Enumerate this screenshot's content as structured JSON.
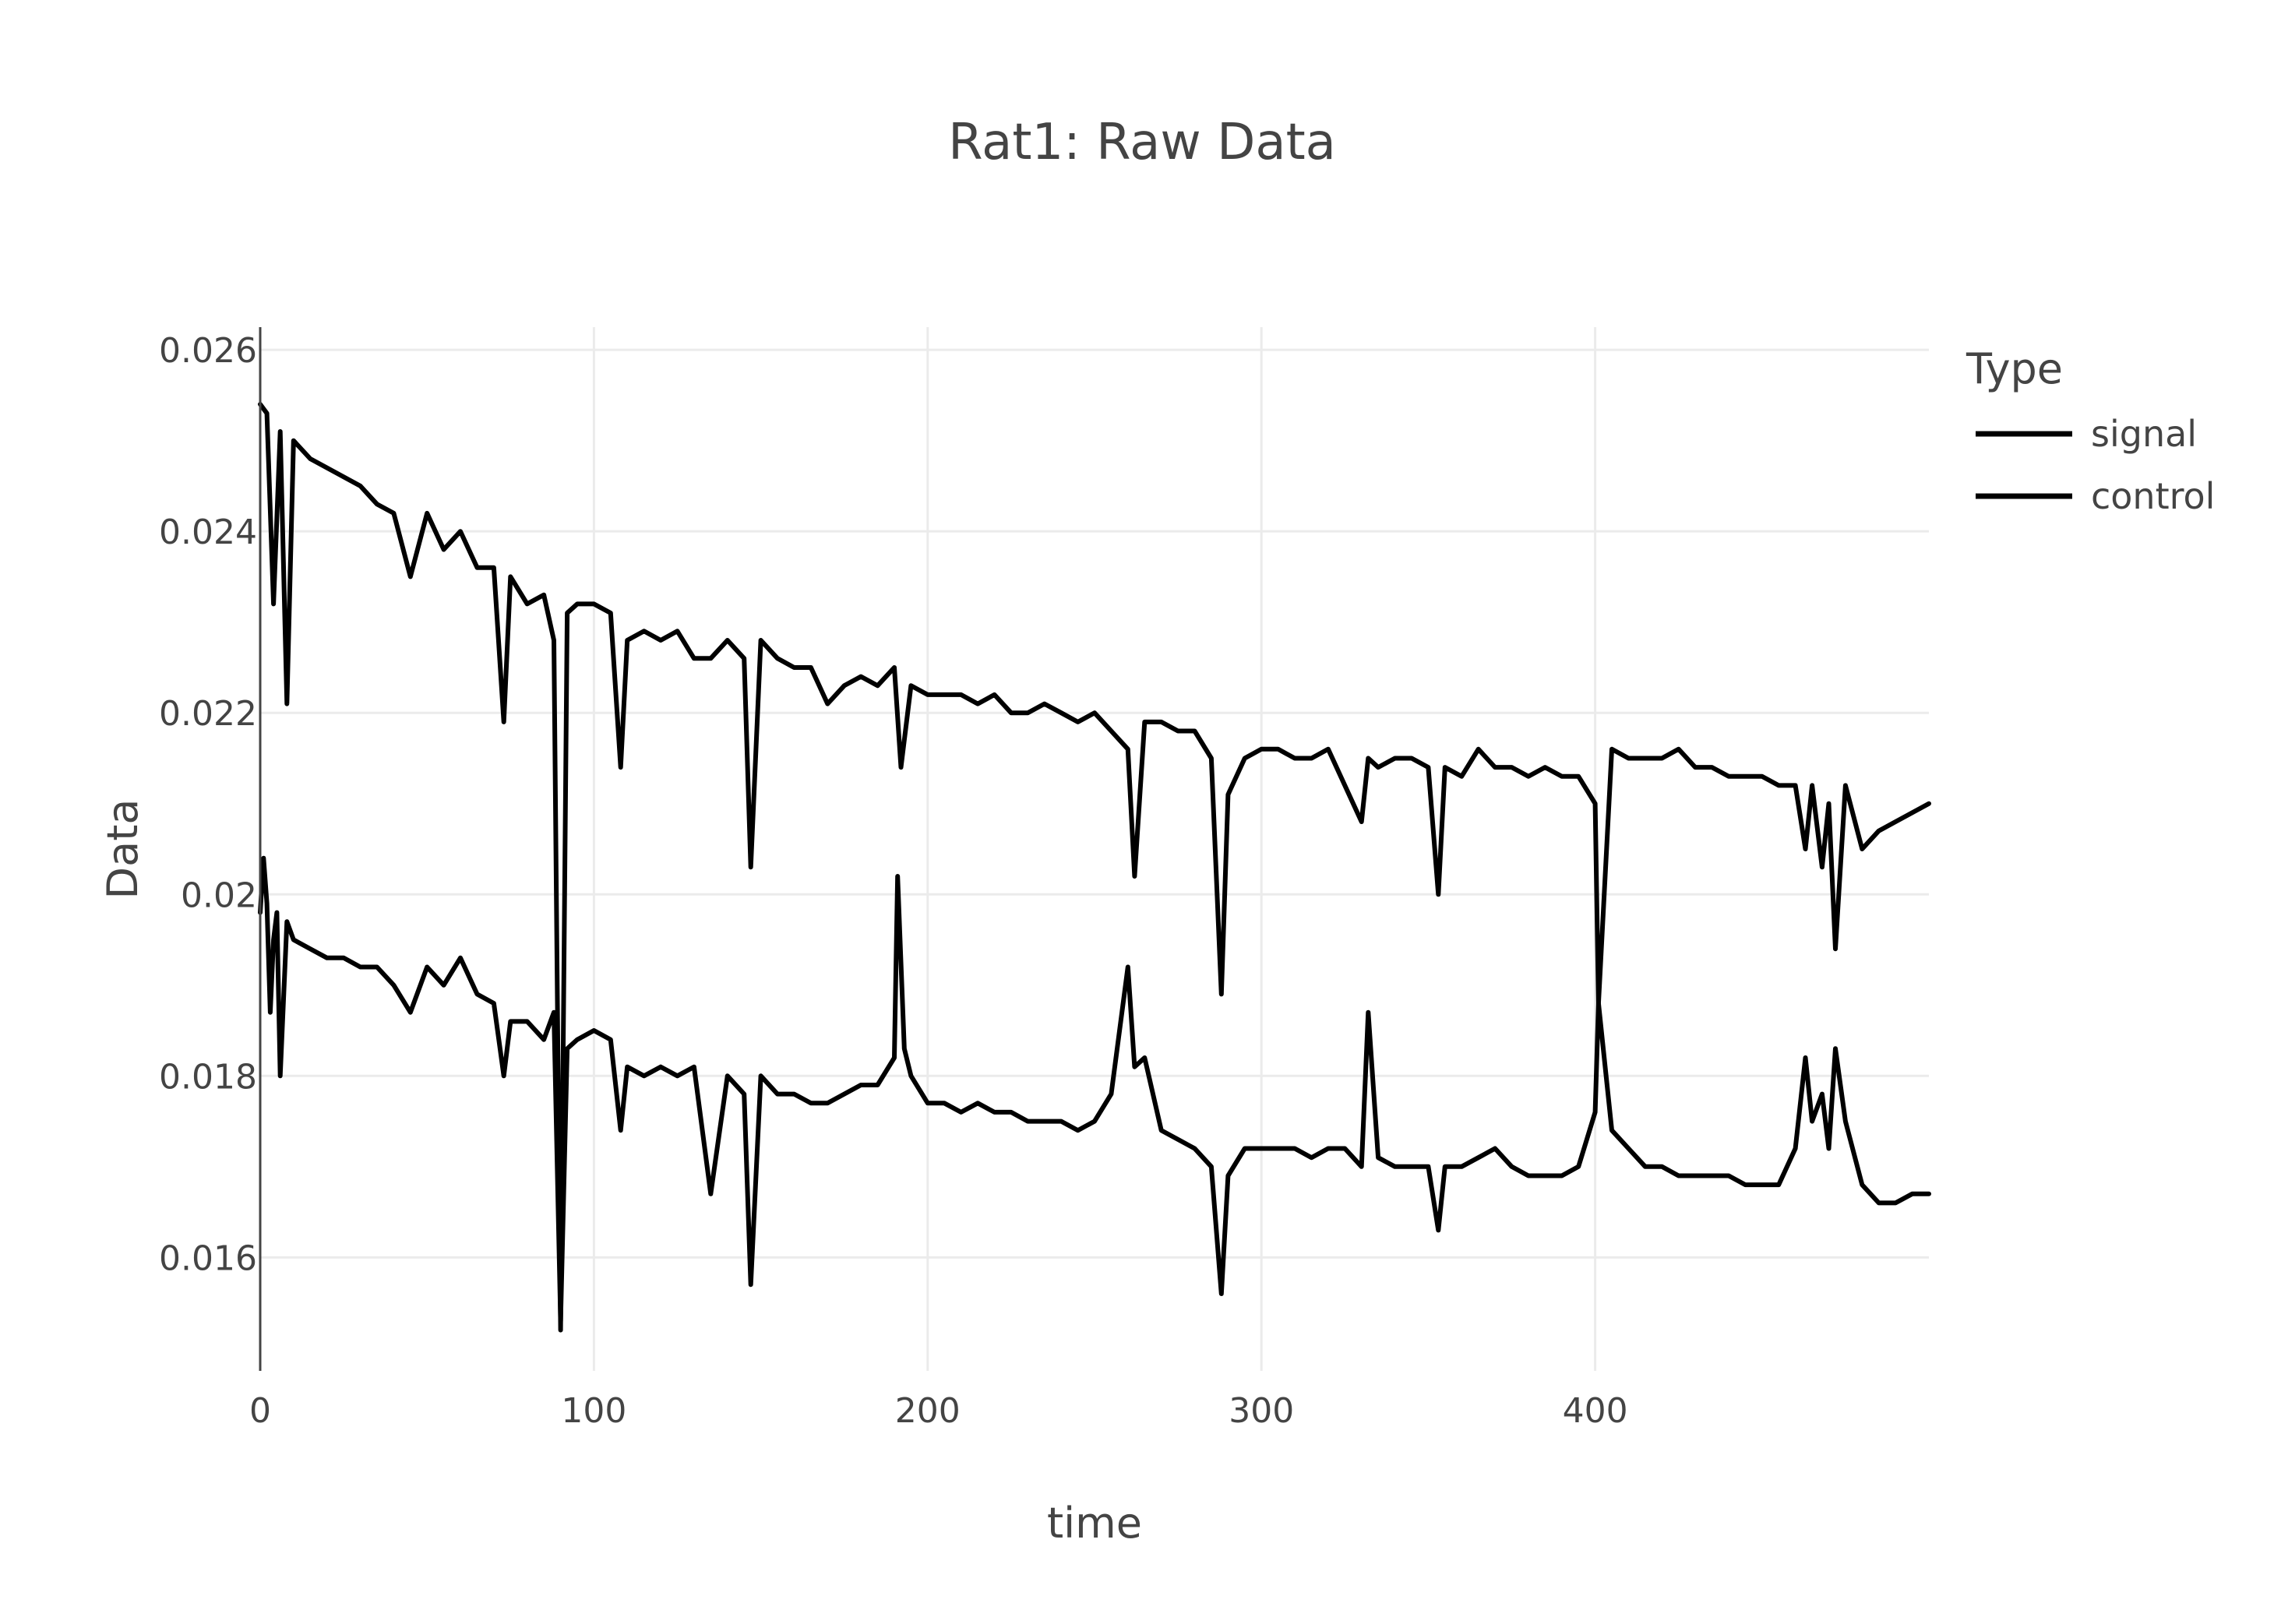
{
  "chart_data": {
    "type": "line",
    "title": "Rat1: Raw Data",
    "xlabel": "time",
    "ylabel": "Data",
    "xlim": [
      0,
      500
    ],
    "ylim": [
      0.01475,
      0.02625
    ],
    "x_ticks": [
      0,
      100,
      200,
      300,
      400
    ],
    "x_tick_labels": [
      "0",
      "100",
      "200",
      "300",
      "400"
    ],
    "y_ticks": [
      0.016,
      0.018,
      0.02,
      0.022,
      0.024,
      0.026
    ],
    "y_tick_labels": [
      "0.016",
      "0.018",
      "0.02",
      "0.022",
      "0.024",
      "0.026"
    ],
    "grid": true,
    "legend": {
      "title": "Type",
      "position": "top-right"
    },
    "series": [
      {
        "name": "signal",
        "color": "#000000",
        "x": [
          0,
          2,
          4,
          6,
          8,
          10,
          15,
          20,
          25,
          30,
          35,
          40,
          45,
          50,
          55,
          60,
          65,
          70,
          73,
          75,
          80,
          85,
          88,
          90,
          92,
          95,
          100,
          105,
          108,
          110,
          115,
          120,
          125,
          130,
          135,
          140,
          145,
          147,
          150,
          155,
          160,
          165,
          170,
          175,
          180,
          185,
          190,
          192,
          195,
          200,
          205,
          210,
          215,
          220,
          225,
          230,
          235,
          240,
          245,
          250,
          255,
          260,
          262,
          265,
          270,
          275,
          280,
          285,
          288,
          290,
          295,
          300,
          305,
          310,
          315,
          320,
          325,
          330,
          332,
          335,
          340,
          345,
          350,
          353,
          355,
          360,
          365,
          370,
          375,
          380,
          385,
          390,
          395,
          400,
          401,
          405,
          410,
          415,
          420,
          425,
          430,
          435,
          440,
          445,
          450,
          455,
          460,
          463,
          465,
          468,
          470,
          472,
          475,
          480,
          485,
          490,
          495,
          500
        ],
        "y": [
          0.0254,
          0.0253,
          0.0232,
          0.0251,
          0.0221,
          0.025,
          0.0248,
          0.0247,
          0.0246,
          0.0245,
          0.0243,
          0.0242,
          0.0235,
          0.0242,
          0.0238,
          0.024,
          0.0236,
          0.0236,
          0.0219,
          0.0235,
          0.0232,
          0.0233,
          0.0228,
          0.0152,
          0.0231,
          0.0232,
          0.0232,
          0.0231,
          0.0214,
          0.0228,
          0.0229,
          0.0228,
          0.0229,
          0.0226,
          0.0226,
          0.0228,
          0.0226,
          0.0203,
          0.0228,
          0.0226,
          0.0225,
          0.0225,
          0.0221,
          0.0223,
          0.0224,
          0.0223,
          0.0225,
          0.0214,
          0.0223,
          0.0222,
          0.0222,
          0.0222,
          0.0221,
          0.0222,
          0.022,
          0.022,
          0.0221,
          0.022,
          0.0219,
          0.022,
          0.0218,
          0.0216,
          0.0202,
          0.0219,
          0.0219,
          0.0218,
          0.0218,
          0.0215,
          0.0189,
          0.0211,
          0.0215,
          0.0216,
          0.0216,
          0.0215,
          0.0215,
          0.0216,
          0.0212,
          0.0208,
          0.0215,
          0.0214,
          0.0215,
          0.0215,
          0.0214,
          0.02,
          0.0214,
          0.0213,
          0.0216,
          0.0214,
          0.0214,
          0.0213,
          0.0214,
          0.0213,
          0.0213,
          0.021,
          0.0188,
          0.0216,
          0.0215,
          0.0215,
          0.0215,
          0.0216,
          0.0214,
          0.0214,
          0.0213,
          0.0213,
          0.0213,
          0.0212,
          0.0212,
          0.0205,
          0.0212,
          0.0203,
          0.021,
          0.0194,
          0.0212,
          0.0205,
          0.0207,
          0.0208,
          0.0209,
          0.021
        ]
      },
      {
        "name": "control",
        "color": "#000000",
        "x": [
          0,
          1,
          2,
          3,
          4,
          5,
          6,
          8,
          10,
          15,
          20,
          25,
          30,
          35,
          40,
          45,
          50,
          55,
          60,
          65,
          70,
          73,
          75,
          80,
          85,
          88,
          90,
          92,
          95,
          100,
          105,
          108,
          110,
          115,
          120,
          125,
          130,
          135,
          140,
          145,
          147,
          150,
          155,
          160,
          165,
          170,
          175,
          180,
          185,
          190,
          191,
          193,
          195,
          200,
          205,
          210,
          215,
          220,
          225,
          230,
          235,
          240,
          245,
          250,
          255,
          260,
          262,
          265,
          270,
          275,
          280,
          285,
          288,
          290,
          295,
          300,
          305,
          310,
          315,
          320,
          325,
          330,
          332,
          335,
          340,
          345,
          350,
          353,
          355,
          360,
          365,
          370,
          375,
          380,
          385,
          390,
          395,
          400,
          401,
          405,
          410,
          415,
          420,
          425,
          430,
          435,
          440,
          445,
          450,
          455,
          460,
          463,
          465,
          468,
          470,
          472,
          475,
          480,
          485,
          490,
          495,
          500
        ],
        "y": [
          0.0198,
          0.0204,
          0.0199,
          0.0187,
          0.0195,
          0.0198,
          0.018,
          0.0197,
          0.0195,
          0.0194,
          0.0193,
          0.0193,
          0.0192,
          0.0192,
          0.019,
          0.0187,
          0.0192,
          0.019,
          0.0193,
          0.0189,
          0.0188,
          0.018,
          0.0186,
          0.0186,
          0.0184,
          0.0187,
          0.0153,
          0.0183,
          0.0184,
          0.0185,
          0.0184,
          0.0174,
          0.0181,
          0.018,
          0.0181,
          0.018,
          0.0181,
          0.0167,
          0.018,
          0.0178,
          0.0157,
          0.018,
          0.0178,
          0.0178,
          0.0177,
          0.0177,
          0.0178,
          0.0179,
          0.0179,
          0.0182,
          0.0202,
          0.0183,
          0.018,
          0.0177,
          0.0177,
          0.0176,
          0.0177,
          0.0176,
          0.0176,
          0.0175,
          0.0175,
          0.0175,
          0.0174,
          0.0175,
          0.0178,
          0.0192,
          0.0181,
          0.0182,
          0.0174,
          0.0173,
          0.0172,
          0.017,
          0.0156,
          0.0169,
          0.0172,
          0.0172,
          0.0172,
          0.0172,
          0.0171,
          0.0172,
          0.0172,
          0.017,
          0.0187,
          0.0171,
          0.017,
          0.017,
          0.017,
          0.0163,
          0.017,
          0.017,
          0.0171,
          0.0172,
          0.017,
          0.0169,
          0.0169,
          0.0169,
          0.017,
          0.0176,
          0.0188,
          0.0174,
          0.0172,
          0.017,
          0.017,
          0.0169,
          0.0169,
          0.0169,
          0.0169,
          0.0168,
          0.0168,
          0.0168,
          0.0172,
          0.0182,
          0.0175,
          0.0178,
          0.0172,
          0.0183,
          0.0175,
          0.0168,
          0.0166,
          0.0166,
          0.0167,
          0.0167
        ]
      }
    ]
  }
}
